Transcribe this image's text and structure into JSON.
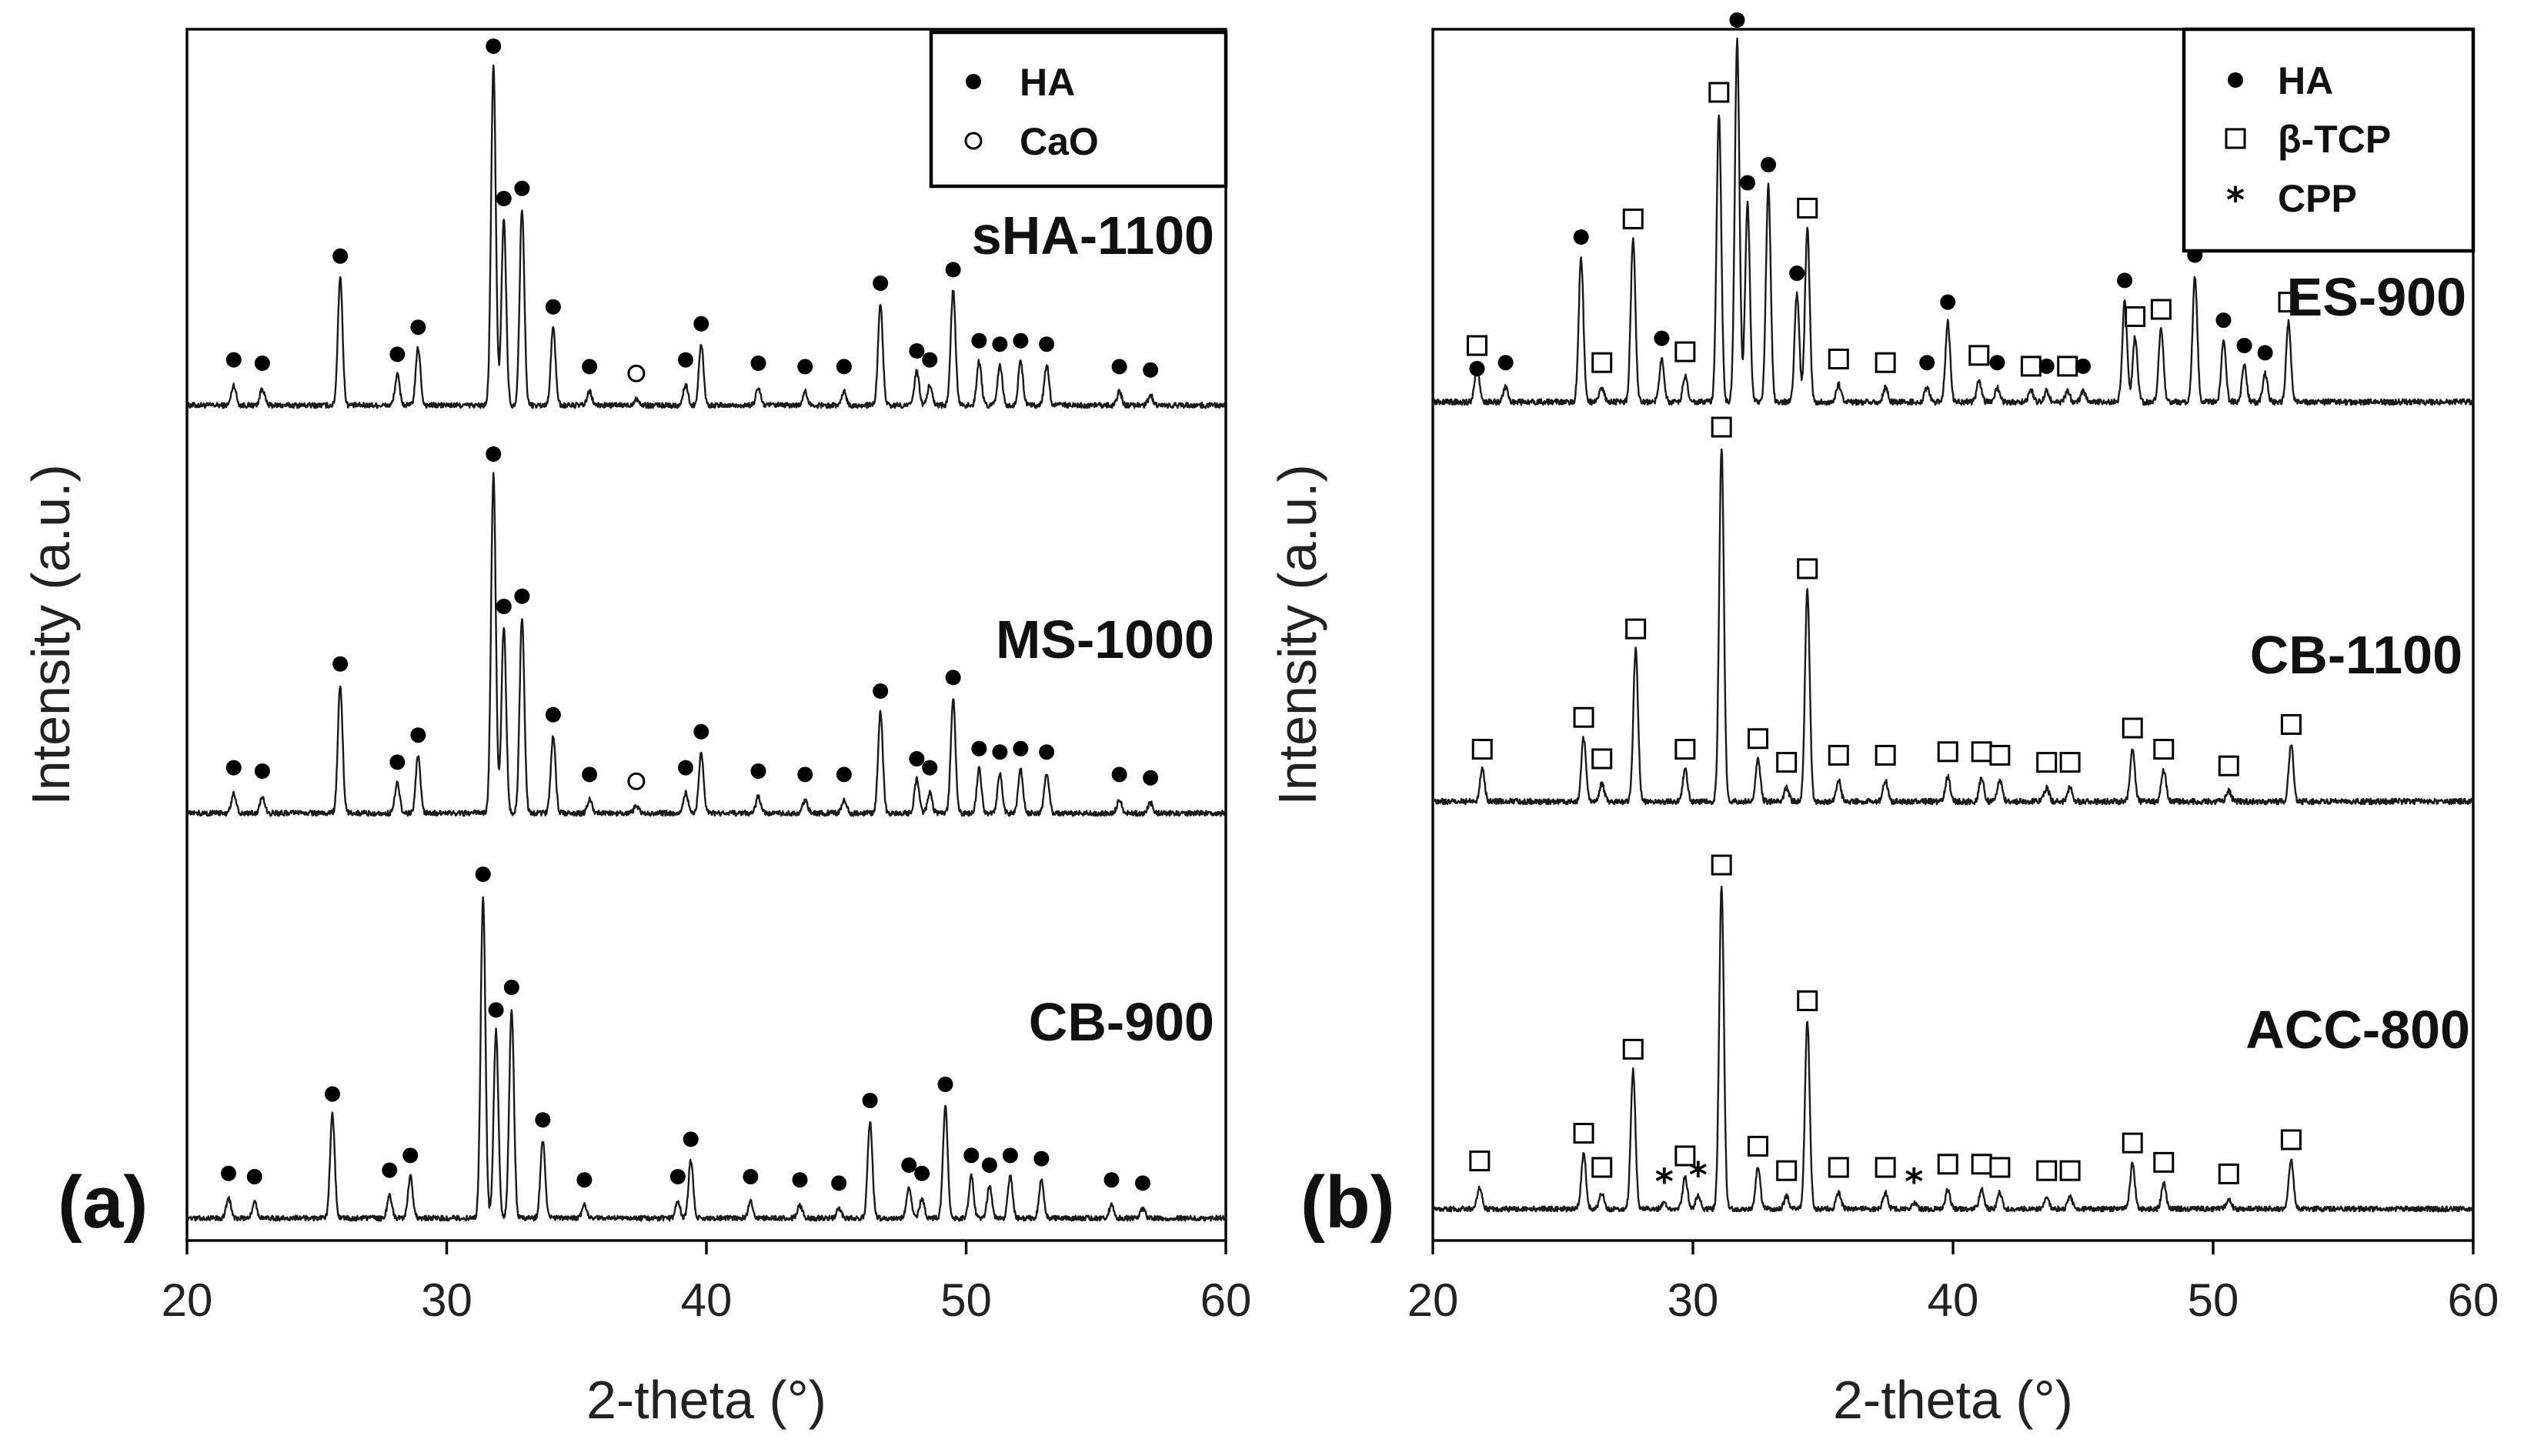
{
  "chart_data": [
    {
      "type": "line",
      "panel_label": "(a)",
      "xlabel": "2-theta (°)",
      "ylabel": "Intensity (a.u.)",
      "xlim": [
        20,
        60
      ],
      "xticks": [
        20,
        30,
        40,
        50,
        60
      ],
      "legend": {
        "placement": "top-right",
        "entries": [
          {
            "marker": "filled-circle",
            "label": "HA"
          },
          {
            "marker": "open-circle",
            "label": "CaO"
          }
        ]
      },
      "series": [
        {
          "name": "sHA-1100",
          "peaks": [
            {
              "x": 21.8,
              "i": 6,
              "m": "filled-circle"
            },
            {
              "x": 22.9,
              "i": 5,
              "m": "filled-circle"
            },
            {
              "x": 25.9,
              "i": 38,
              "m": "filled-circle"
            },
            {
              "x": 28.1,
              "i": 9,
              "m": "filled-circle"
            },
            {
              "x": 28.9,
              "i": 17,
              "m": "filled-circle"
            },
            {
              "x": 31.8,
              "i": 100,
              "m": "filled-circle"
            },
            {
              "x": 32.2,
              "i": 55,
              "m": "filled-circle"
            },
            {
              "x": 32.9,
              "i": 58,
              "m": "filled-circle"
            },
            {
              "x": 34.1,
              "i": 23,
              "m": "filled-circle"
            },
            {
              "x": 35.5,
              "i": 4,
              "m": "filled-circle"
            },
            {
              "x": 37.3,
              "i": 2,
              "m": "open-circle"
            },
            {
              "x": 39.2,
              "i": 6,
              "m": "filled-circle"
            },
            {
              "x": 39.8,
              "i": 18,
              "m": "filled-circle"
            },
            {
              "x": 42.0,
              "i": 5,
              "m": "filled-circle"
            },
            {
              "x": 43.8,
              "i": 4,
              "m": "filled-circle"
            },
            {
              "x": 45.3,
              "i": 4,
              "m": "filled-circle"
            },
            {
              "x": 46.7,
              "i": 30,
              "m": "filled-circle"
            },
            {
              "x": 48.1,
              "i": 10,
              "m": "filled-circle"
            },
            {
              "x": 48.6,
              "i": 6,
              "m": "filled-circle"
            },
            {
              "x": 49.5,
              "i": 34,
              "m": "filled-circle"
            },
            {
              "x": 50.5,
              "i": 13,
              "m": "filled-circle"
            },
            {
              "x": 51.3,
              "i": 12,
              "m": "filled-circle"
            },
            {
              "x": 52.1,
              "i": 13,
              "m": "filled-circle"
            },
            {
              "x": 53.1,
              "i": 12,
              "m": "filled-circle"
            },
            {
              "x": 55.9,
              "i": 4,
              "m": "filled-circle"
            },
            {
              "x": 57.1,
              "i": 3,
              "m": "filled-circle"
            }
          ]
        },
        {
          "name": "MS-1000",
          "peaks": [
            {
              "x": 21.8,
              "i": 6,
              "m": "filled-circle"
            },
            {
              "x": 22.9,
              "i": 5,
              "m": "filled-circle"
            },
            {
              "x": 25.9,
              "i": 38,
              "m": "filled-circle"
            },
            {
              "x": 28.1,
              "i": 9,
              "m": "filled-circle"
            },
            {
              "x": 28.9,
              "i": 17,
              "m": "filled-circle"
            },
            {
              "x": 31.8,
              "i": 100,
              "m": "filled-circle"
            },
            {
              "x": 32.2,
              "i": 55,
              "m": "filled-circle"
            },
            {
              "x": 32.9,
              "i": 58,
              "m": "filled-circle"
            },
            {
              "x": 34.1,
              "i": 23,
              "m": "filled-circle"
            },
            {
              "x": 35.5,
              "i": 4,
              "m": "filled-circle"
            },
            {
              "x": 37.3,
              "i": 2,
              "m": "open-circle"
            },
            {
              "x": 39.2,
              "i": 6,
              "m": "filled-circle"
            },
            {
              "x": 39.8,
              "i": 18,
              "m": "filled-circle"
            },
            {
              "x": 42.0,
              "i": 5,
              "m": "filled-circle"
            },
            {
              "x": 43.8,
              "i": 4,
              "m": "filled-circle"
            },
            {
              "x": 45.3,
              "i": 4,
              "m": "filled-circle"
            },
            {
              "x": 46.7,
              "i": 30,
              "m": "filled-circle"
            },
            {
              "x": 48.1,
              "i": 10,
              "m": "filled-circle"
            },
            {
              "x": 48.6,
              "i": 6,
              "m": "filled-circle"
            },
            {
              "x": 49.5,
              "i": 34,
              "m": "filled-circle"
            },
            {
              "x": 50.5,
              "i": 13,
              "m": "filled-circle"
            },
            {
              "x": 51.3,
              "i": 12,
              "m": "filled-circle"
            },
            {
              "x": 52.1,
              "i": 13,
              "m": "filled-circle"
            },
            {
              "x": 53.1,
              "i": 12,
              "m": "filled-circle"
            },
            {
              "x": 55.9,
              "i": 4,
              "m": "filled-circle"
            },
            {
              "x": 57.1,
              "i": 3,
              "m": "filled-circle"
            }
          ]
        },
        {
          "name": "CB-900",
          "peaks": [
            {
              "x": 21.6,
              "i": 6,
              "m": "filled-circle"
            },
            {
              "x": 22.6,
              "i": 5,
              "m": "filled-circle"
            },
            {
              "x": 25.6,
              "i": 32,
              "m": "filled-circle"
            },
            {
              "x": 27.8,
              "i": 7,
              "m": "filled-circle"
            },
            {
              "x": 28.6,
              "i": 13,
              "m": "filled-circle"
            },
            {
              "x": 31.4,
              "i": 100,
              "m": "filled-circle"
            },
            {
              "x": 31.9,
              "i": 58,
              "m": "filled-circle"
            },
            {
              "x": 32.5,
              "i": 65,
              "m": "filled-circle"
            },
            {
              "x": 33.7,
              "i": 24,
              "m": "filled-circle"
            },
            {
              "x": 35.3,
              "i": 4,
              "m": "filled-circle"
            },
            {
              "x": 38.9,
              "i": 5,
              "m": "filled-circle"
            },
            {
              "x": 39.4,
              "i": 18,
              "m": "filled-circle"
            },
            {
              "x": 41.7,
              "i": 5,
              "m": "filled-circle"
            },
            {
              "x": 43.6,
              "i": 4,
              "m": "filled-circle"
            },
            {
              "x": 45.1,
              "i": 3,
              "m": "filled-circle"
            },
            {
              "x": 46.3,
              "i": 30,
              "m": "filled-circle"
            },
            {
              "x": 47.8,
              "i": 10,
              "m": "filled-circle"
            },
            {
              "x": 48.3,
              "i": 6,
              "m": "filled-circle"
            },
            {
              "x": 49.2,
              "i": 35,
              "m": "filled-circle"
            },
            {
              "x": 50.2,
              "i": 13,
              "m": "filled-circle"
            },
            {
              "x": 50.9,
              "i": 10,
              "m": "filled-circle"
            },
            {
              "x": 51.7,
              "i": 13,
              "m": "filled-circle"
            },
            {
              "x": 52.9,
              "i": 12,
              "m": "filled-circle"
            },
            {
              "x": 55.6,
              "i": 4,
              "m": "filled-circle"
            },
            {
              "x": 56.8,
              "i": 3,
              "m": "filled-circle"
            }
          ]
        }
      ]
    },
    {
      "type": "line",
      "panel_label": "(b)",
      "xlabel": "2-theta (°)",
      "ylabel": "Intensity (a.u.)",
      "xlim": [
        20,
        60
      ],
      "xticks": [
        20,
        30,
        40,
        50,
        60
      ],
      "legend": {
        "placement": "top-right",
        "entries": [
          {
            "marker": "filled-circle",
            "label": "HA"
          },
          {
            "marker": "open-square",
            "label": "β-TCP"
          },
          {
            "marker": "asterisk",
            "label": "CPP"
          }
        ]
      },
      "series": [
        {
          "name": "ES-900",
          "peaks": [
            {
              "x": 21.7,
              "i": 10,
              "m": "open-square",
              "m2": "filled-circle"
            },
            {
              "x": 22.8,
              "i": 4,
              "m": "filled-circle"
            },
            {
              "x": 25.7,
              "i": 40,
              "m": "filled-circle"
            },
            {
              "x": 26.5,
              "i": 4,
              "m": "open-square"
            },
            {
              "x": 27.7,
              "i": 45,
              "m": "open-square"
            },
            {
              "x": 28.8,
              "i": 12,
              "m": "filled-circle"
            },
            {
              "x": 29.7,
              "i": 7,
              "m": "open-square"
            },
            {
              "x": 31.0,
              "i": 80,
              "m": "open-square"
            },
            {
              "x": 31.7,
              "i": 100,
              "m": "filled-circle"
            },
            {
              "x": 32.1,
              "i": 55,
              "m": "filled-circle"
            },
            {
              "x": 32.9,
              "i": 60,
              "m": "filled-circle"
            },
            {
              "x": 34.0,
              "i": 30,
              "m": "filled-circle"
            },
            {
              "x": 34.4,
              "i": 48,
              "m": "open-square"
            },
            {
              "x": 35.6,
              "i": 5,
              "m": "open-square"
            },
            {
              "x": 37.4,
              "i": 4,
              "m": "open-square"
            },
            {
              "x": 39.0,
              "i": 4,
              "m": "filled-circle"
            },
            {
              "x": 39.8,
              "i": 22,
              "m": "filled-circle"
            },
            {
              "x": 41.0,
              "i": 6,
              "m": "open-square"
            },
            {
              "x": 41.7,
              "i": 4,
              "m": "filled-circle"
            },
            {
              "x": 43.0,
              "i": 3,
              "m": "open-square"
            },
            {
              "x": 43.6,
              "i": 3,
              "m": "filled-circle"
            },
            {
              "x": 44.4,
              "i": 3,
              "m": "open-square"
            },
            {
              "x": 45.0,
              "i": 3,
              "m": "filled-circle"
            },
            {
              "x": 46.6,
              "i": 28,
              "m": "filled-circle"
            },
            {
              "x": 47.0,
              "i": 18,
              "m": "open-square"
            },
            {
              "x": 48.0,
              "i": 20,
              "m": "open-square"
            },
            {
              "x": 49.3,
              "i": 35,
              "m": "filled-circle"
            },
            {
              "x": 50.4,
              "i": 17,
              "m": "filled-circle"
            },
            {
              "x": 51.2,
              "i": 10,
              "m": "filled-circle"
            },
            {
              "x": 52.0,
              "i": 8,
              "m": "filled-circle"
            },
            {
              "x": 52.9,
              "i": 22,
              "m": "open-square"
            }
          ]
        },
        {
          "name": "CB-1100",
          "peaks": [
            {
              "x": 21.9,
              "i": 9,
              "m": "open-square"
            },
            {
              "x": 25.8,
              "i": 18,
              "m": "open-square"
            },
            {
              "x": 26.5,
              "i": 5,
              "m": "open-square"
            },
            {
              "x": 27.8,
              "i": 43,
              "m": "open-square"
            },
            {
              "x": 29.7,
              "i": 9,
              "m": "open-square"
            },
            {
              "x": 31.1,
              "i": 100,
              "m": "open-square"
            },
            {
              "x": 32.5,
              "i": 12,
              "m": "open-square"
            },
            {
              "x": 33.6,
              "i": 4,
              "m": "open-square"
            },
            {
              "x": 34.4,
              "i": 60,
              "m": "open-square"
            },
            {
              "x": 35.6,
              "i": 6,
              "m": "open-square"
            },
            {
              "x": 37.4,
              "i": 6,
              "m": "open-square"
            },
            {
              "x": 39.8,
              "i": 7,
              "m": "open-square"
            },
            {
              "x": 41.1,
              "i": 7,
              "m": "open-square"
            },
            {
              "x": 41.8,
              "i": 6,
              "m": "open-square"
            },
            {
              "x": 43.6,
              "i": 4,
              "m": "open-square"
            },
            {
              "x": 44.5,
              "i": 4,
              "m": "open-square"
            },
            {
              "x": 46.9,
              "i": 15,
              "m": "open-square"
            },
            {
              "x": 48.1,
              "i": 9,
              "m": "open-square"
            },
            {
              "x": 50.6,
              "i": 3,
              "m": "open-square"
            },
            {
              "x": 53.0,
              "i": 16,
              "m": "open-square"
            }
          ]
        },
        {
          "name": "ACC-800",
          "peaks": [
            {
              "x": 21.8,
              "i": 7,
              "m": "open-square"
            },
            {
              "x": 25.8,
              "i": 17,
              "m": "open-square"
            },
            {
              "x": 26.5,
              "i": 5,
              "m": "open-square"
            },
            {
              "x": 27.7,
              "i": 43,
              "m": "open-square"
            },
            {
              "x": 28.9,
              "i": 2,
              "m": "asterisk"
            },
            {
              "x": 29.7,
              "i": 10,
              "m": "open-square"
            },
            {
              "x": 30.2,
              "i": 4,
              "m": "asterisk"
            },
            {
              "x": 31.1,
              "i": 100,
              "m": "open-square"
            },
            {
              "x": 32.5,
              "i": 13,
              "m": "open-square"
            },
            {
              "x": 33.6,
              "i": 4,
              "m": "open-square"
            },
            {
              "x": 34.4,
              "i": 58,
              "m": "open-square"
            },
            {
              "x": 35.6,
              "i": 5,
              "m": "open-square"
            },
            {
              "x": 37.4,
              "i": 5,
              "m": "open-square"
            },
            {
              "x": 38.5,
              "i": 2,
              "m": "asterisk"
            },
            {
              "x": 39.8,
              "i": 6,
              "m": "open-square"
            },
            {
              "x": 41.1,
              "i": 6,
              "m": "open-square"
            },
            {
              "x": 41.8,
              "i": 5,
              "m": "open-square"
            },
            {
              "x": 43.6,
              "i": 4,
              "m": "open-square"
            },
            {
              "x": 44.5,
              "i": 4,
              "m": "open-square"
            },
            {
              "x": 46.9,
              "i": 14,
              "m": "open-square"
            },
            {
              "x": 48.1,
              "i": 8,
              "m": "open-square"
            },
            {
              "x": 50.6,
              "i": 3,
              "m": "open-square"
            },
            {
              "x": 53.0,
              "i": 15,
              "m": "open-square"
            }
          ]
        }
      ]
    }
  ]
}
